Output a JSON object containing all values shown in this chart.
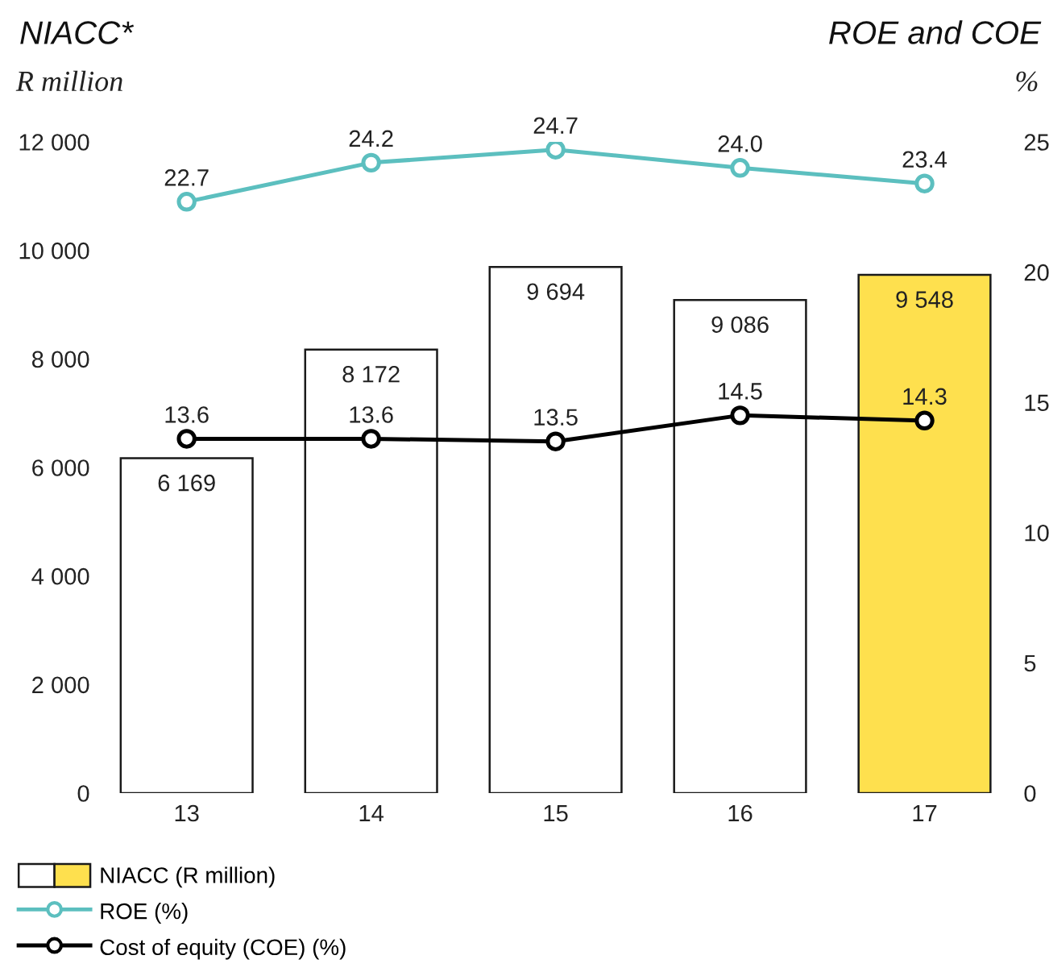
{
  "chart_data": {
    "type": "bar",
    "title": "NIACC*",
    "subtitle": "ROE and COE",
    "ylabel": "R million",
    "y2label": "%",
    "categories": [
      "13",
      "14",
      "15",
      "16",
      "17"
    ],
    "series": [
      {
        "name": "NIACC (R million)",
        "colors": [
          "#ffffff",
          "#ffffff",
          "#ffffff",
          "#ffffff",
          "#fee04e"
        ],
        "values": [
          6169,
          8172,
          9694,
          9086,
          9548
        ],
        "value_labels": [
          "6 169",
          "8 172",
          "9 694",
          "9 086",
          "9 548"
        ]
      },
      {
        "name": "ROE (%)",
        "type": "line",
        "axis": "y2",
        "color": "#5cbfbf",
        "values": [
          22.7,
          24.2,
          24.7,
          24.0,
          23.4
        ],
        "value_labels": [
          "22.7",
          "24.2",
          "24.7",
          "24.0",
          "23.4"
        ]
      },
      {
        "name": "Cost of equity (COE) (%)",
        "type": "line",
        "axis": "y2",
        "color": "#000000",
        "values": [
          13.6,
          13.6,
          13.5,
          14.5,
          14.3
        ],
        "value_labels": [
          "13.6",
          "13.6",
          "13.5",
          "14.5",
          "14.3"
        ]
      }
    ],
    "ylim": [
      0,
      12000
    ],
    "yticks": [
      0,
      {
        "value": 2000,
        "label": "2 000"
      },
      {
        "value": 4000,
        "label": "4 000"
      },
      {
        "value": 6000,
        "label": "6 000"
      },
      {
        "value": 8000,
        "label": "8 000"
      },
      {
        "value": 10000,
        "label": "10 000"
      },
      {
        "value": 12000,
        "label": "12 000"
      }
    ],
    "y2lim": [
      0,
      25
    ],
    "y2ticks": [
      0,
      5,
      10,
      15,
      20,
      25
    ],
    "marker": "circle",
    "grid": false,
    "legend": "bottom left"
  }
}
